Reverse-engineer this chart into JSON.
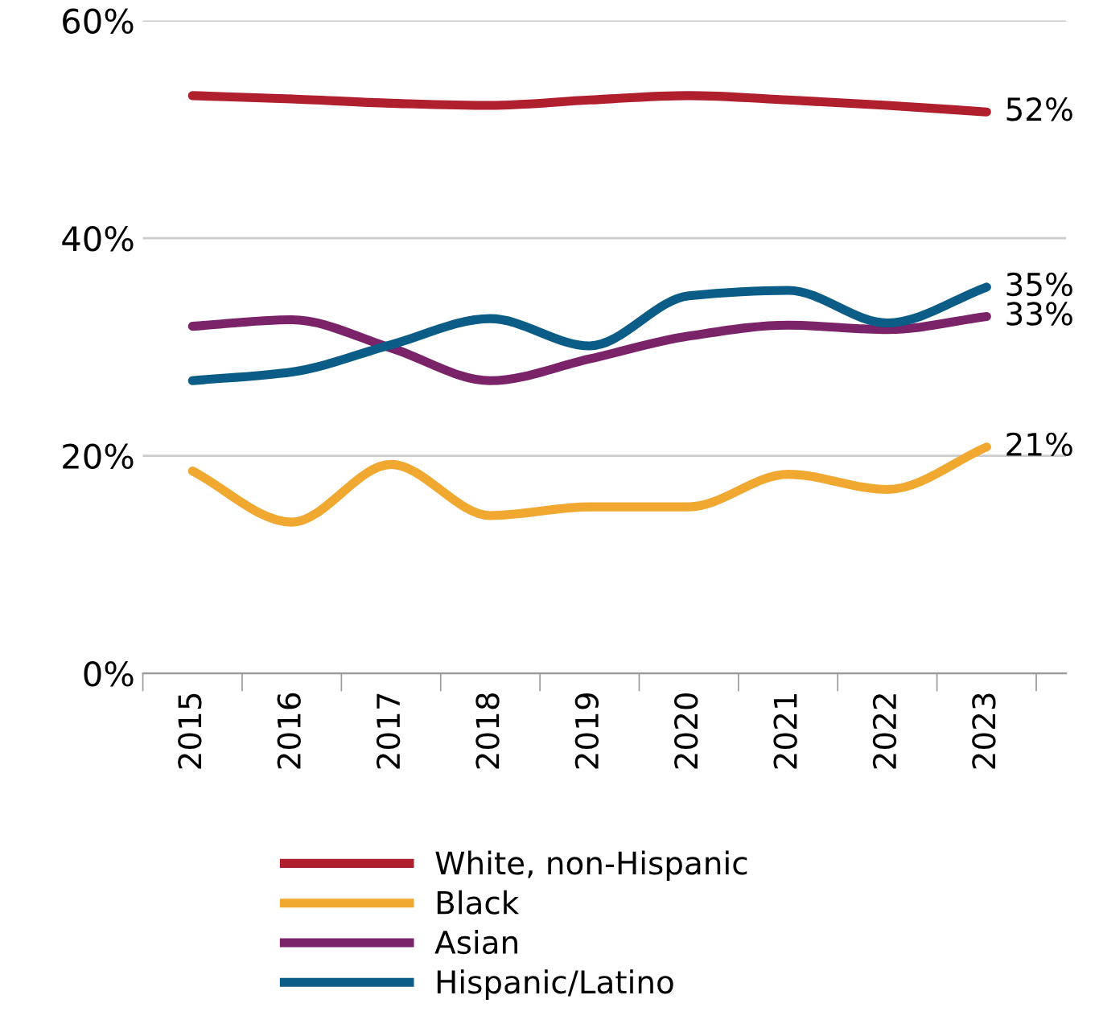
{
  "chart_data": {
    "type": "line",
    "categories": [
      "2015",
      "2016",
      "2017",
      "2018",
      "2019",
      "2020",
      "2021",
      "2022",
      "2023"
    ],
    "series": [
      {
        "name": "White, non-Hispanic",
        "color": "#b01f2e",
        "values": [
          53.1,
          52.8,
          52.4,
          52.2,
          52.7,
          53.1,
          52.7,
          52.2,
          51.6
        ]
      },
      {
        "name": "Black",
        "color": "#f0a830",
        "values": [
          18.6,
          13.9,
          19.2,
          14.5,
          15.3,
          15.3,
          18.3,
          16.9,
          20.8
        ]
      },
      {
        "name": "Asian",
        "color": "#7b2369",
        "values": [
          31.9,
          32.5,
          29.9,
          26.9,
          28.9,
          31.0,
          32.0,
          31.6,
          32.8
        ]
      },
      {
        "name": "Hispanic/Latino",
        "color": "#0b5d88",
        "values": [
          26.9,
          27.7,
          30.2,
          32.6,
          30.1,
          34.7,
          35.2,
          32.2,
          35.5
        ]
      }
    ],
    "ylim": [
      0,
      60
    ],
    "yticks": [
      {
        "value": 0,
        "label": "0%"
      },
      {
        "value": 20,
        "label": "20%"
      },
      {
        "value": 40,
        "label": "40%"
      },
      {
        "value": 60,
        "label": "60%"
      }
    ],
    "grid": "y",
    "legend": "bottom",
    "marker": "none",
    "line_style": "solid",
    "annotations": [
      {
        "text": "52%",
        "x": "2023",
        "y": 51.6
      },
      {
        "text": "35%",
        "x": "2023",
        "y": 35.5
      },
      {
        "text": "33%",
        "x": "2023",
        "y": 32.8
      },
      {
        "text": "21%",
        "x": "2023",
        "y": 20.8
      }
    ]
  }
}
